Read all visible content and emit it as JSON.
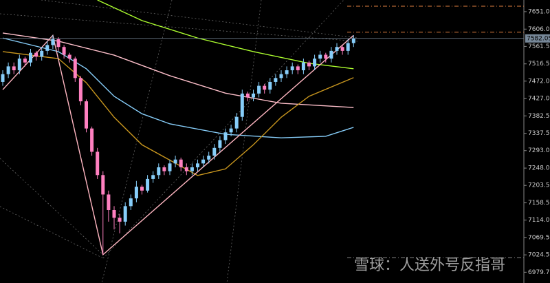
{
  "chart_data": {
    "type": "candlestick",
    "watermark": "雪球：人送外号反指哥",
    "up_color": "#87cefa",
    "down_color": "#ff80c0",
    "open": [
      7470,
      7490,
      7510,
      7500,
      7530,
      7520,
      7545,
      7535,
      7550,
      7565,
      7580,
      7560,
      7540,
      7530,
      7480,
      7420,
      7350,
      7290,
      7230,
      7180,
      7140,
      7120,
      7110,
      7150,
      7170,
      7200,
      7190,
      7220,
      7230,
      7250,
      7240,
      7260,
      7270,
      7250,
      7240,
      7250,
      7260,
      7270,
      7280,
      7300,
      7320,
      7340,
      7350,
      7380,
      7440,
      7430,
      7440,
      7460,
      7450,
      7470,
      7480,
      7490,
      7500,
      7510,
      7500,
      7520,
      7510,
      7530,
      7540,
      7530,
      7550,
      7560,
      7550,
      7570
    ],
    "high": [
      7500,
      7520,
      7520,
      7540,
      7535,
      7555,
      7550,
      7560,
      7575,
      7590,
      7585,
      7565,
      7545,
      7535,
      7485,
      7425,
      7355,
      7300,
      7240,
      7190,
      7150,
      7130,
      7160,
      7180,
      7215,
      7205,
      7230,
      7240,
      7260,
      7255,
      7270,
      7280,
      7275,
      7260,
      7260,
      7270,
      7280,
      7290,
      7310,
      7330,
      7350,
      7360,
      7390,
      7450,
      7445,
      7450,
      7470,
      7465,
      7480,
      7490,
      7500,
      7510,
      7520,
      7515,
      7530,
      7525,
      7540,
      7550,
      7545,
      7560,
      7570,
      7565,
      7580,
      7590
    ],
    "low": [
      7460,
      7480,
      7490,
      7490,
      7510,
      7510,
      7525,
      7525,
      7540,
      7555,
      7550,
      7530,
      7520,
      7470,
      7410,
      7340,
      7280,
      7220,
      7025,
      7110,
      7090,
      7080,
      7100,
      7140,
      7160,
      7180,
      7185,
      7210,
      7220,
      7230,
      7230,
      7250,
      7240,
      7230,
      7230,
      7240,
      7250,
      7260,
      7270,
      7290,
      7310,
      7330,
      7340,
      7370,
      7420,
      7420,
      7430,
      7440,
      7440,
      7460,
      7470,
      7480,
      7490,
      7490,
      7490,
      7500,
      7500,
      7520,
      7520,
      7520,
      7540,
      7540,
      7540,
      7560
    ],
    "close": [
      7490,
      7510,
      7500,
      7530,
      7520,
      7545,
      7535,
      7550,
      7565,
      7580,
      7560,
      7540,
      7530,
      7480,
      7420,
      7350,
      7290,
      7230,
      7180,
      7140,
      7120,
      7110,
      7150,
      7170,
      7200,
      7190,
      7220,
      7230,
      7250,
      7240,
      7260,
      7270,
      7250,
      7240,
      7250,
      7260,
      7270,
      7280,
      7300,
      7320,
      7340,
      7350,
      7380,
      7440,
      7430,
      7440,
      7460,
      7450,
      7470,
      7480,
      7490,
      7500,
      7510,
      7500,
      7520,
      7510,
      7530,
      7540,
      7530,
      7550,
      7560,
      7550,
      7570,
      7582.05
    ],
    "overlays": [
      {
        "color": "#adff2f",
        "x": [
          17,
          25,
          35,
          45,
          55,
          63
        ],
        "values": [
          7681,
          7628,
          7583,
          7548,
          7518,
          7504
        ]
      },
      {
        "color": "#ffc0cb",
        "x": [
          0,
          10,
          20,
          30,
          40,
          50,
          63
        ],
        "values": [
          7596,
          7575,
          7539,
          7486,
          7441,
          7415,
          7404
        ]
      },
      {
        "color": "#87cefa",
        "x": [
          0,
          10,
          15,
          20,
          25,
          30,
          40,
          50,
          58,
          63
        ],
        "values": [
          7583,
          7548,
          7504,
          7433,
          7388,
          7362,
          7335,
          7326,
          7330,
          7353
        ]
      },
      {
        "color": "#c8961e",
        "x": [
          0,
          10,
          15,
          20,
          25,
          35,
          40,
          45,
          50,
          55,
          63
        ],
        "values": [
          7548,
          7530,
          7468,
          7379,
          7308,
          7229,
          7246,
          7308,
          7379,
          7433,
          7481
        ]
      },
      {
        "color": "#ffb6c1",
        "x": [
          0,
          9,
          18,
          63
        ],
        "values": [
          7450,
          7590,
          7025,
          7590
        ]
      }
    ],
    "levels": [
      {
        "value": 7665,
        "color": "#e08040"
      },
      {
        "value": 7598,
        "color": "#e08040"
      },
      {
        "value": 7017,
        "color": "#888888"
      }
    ],
    "ylim": [
      6952,
      7681
    ],
    "yticks": [
      {
        "value": 7651,
        "label": "7651.00"
      },
      {
        "value": 7606,
        "label": "7606.00"
      },
      {
        "value": 7561.5,
        "label": "7561.50"
      },
      {
        "value": 7516.5,
        "label": "7516.50"
      },
      {
        "value": 7472,
        "label": "7472.00"
      },
      {
        "value": 7427,
        "label": "7427.00"
      },
      {
        "value": 7382.5,
        "label": "7382.50"
      },
      {
        "value": 7337.5,
        "label": "7337.50"
      },
      {
        "value": 7293,
        "label": "7293.00"
      },
      {
        "value": 7248,
        "label": "7248.00"
      },
      {
        "value": 7203.5,
        "label": "7203.50"
      },
      {
        "value": 7158.5,
        "label": "7158.50"
      },
      {
        "value": 7114,
        "label": "7114.00"
      },
      {
        "value": 7069.5,
        "label": "7069.50"
      },
      {
        "value": 7024.5,
        "label": "7024.50"
      },
      6979.75
    ]
  }
}
